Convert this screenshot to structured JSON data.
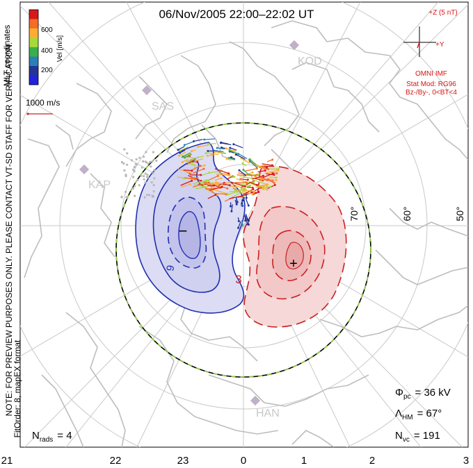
{
  "title": "06/Nov/2005 22:00–22:02 UT",
  "colorbar": {
    "label": "Vel [m/s]",
    "ticks": [
      "600",
      "400",
      "200"
    ],
    "colors": [
      "#d7191c",
      "#f46d25",
      "#fdae30",
      "#a6d93b",
      "#38b04a",
      "#2c7fb8",
      "#253494",
      "#2222dd"
    ]
  },
  "coordinates_label": "MLT coordinates",
  "vector_scale": {
    "label": "1000 m/s",
    "color": "#cc2222"
  },
  "side_note": "NOTE: FOR PREVIEW PURPOSES ONLY. PLEASE CONTACT VT-SD STAFF FOR VERIFICATION.",
  "fit_info": "FitOrder: 8, mapEX format",
  "imf": {
    "z_label": "+Z (5 nT)",
    "y_label": "+Y",
    "source": "OMNI IMF",
    "model": "Stat Mod: RG96",
    "conditions": "Bz-/By-, 0<BT<4",
    "color": "#dd1111"
  },
  "stations": [
    {
      "code": "KOD"
    },
    {
      "code": "SAS"
    },
    {
      "code": "KAP"
    },
    {
      "code": "HAN"
    }
  ],
  "latitude_labels": [
    "70°",
    "60°",
    "50°"
  ],
  "mlt_labels": [
    "21",
    "22",
    "23",
    "0",
    "1",
    "2",
    "3"
  ],
  "contour_labels": {
    "negative_value": "9",
    "positive_value": "3",
    "negative_marker": "−",
    "positive_marker": "+"
  },
  "stats": {
    "phi_symbol": "Φ",
    "phi_sub": "pc",
    "phi_value": "= 36 kV",
    "lambda_symbol": "Λ",
    "lambda_sub": "HM",
    "lambda_value": "= 67°",
    "nvc_symbol": "N",
    "nvc_sub": "vc",
    "nvc_value": "= 191",
    "nrads_symbol": "N",
    "nrads_sub": "rads",
    "nrads_value": "= 4"
  },
  "colors": {
    "negative_cell_line": "#1f2fb0",
    "negative_cell_fill": "#dcdcf4",
    "positive_cell_line": "#cc1f1f",
    "positive_cell_fill": "#f6d8d8",
    "grid": "#c8c8c8",
    "coast": "#bdbdbd",
    "hmb_dash": "#8fd13a"
  }
}
